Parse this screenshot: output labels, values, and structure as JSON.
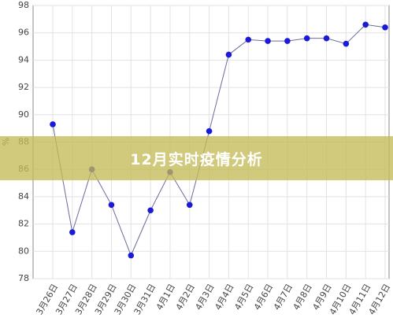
{
  "banner": "12月实时疫情分析",
  "chart_data": {
    "type": "line",
    "ylabel": "%",
    "categories": [
      "3月26日",
      "3月27日",
      "3月28日",
      "3月29日",
      "3月30日",
      "3月31日",
      "4月1日",
      "4月2日",
      "4月3日",
      "4月4日",
      "4月5日",
      "4月6日",
      "4月7日",
      "4月8日",
      "4月9日",
      "4月10日",
      "4月11日",
      "4月12日"
    ],
    "series": [
      {
        "name": "%",
        "color": "#1a1ad8",
        "line_color": "#6b6b9c",
        "values": [
          89.3,
          81.4,
          86.0,
          83.4,
          79.7,
          83.0,
          85.8,
          83.4,
          88.8,
          94.4,
          95.5,
          95.4,
          95.4,
          95.6,
          95.6,
          95.2,
          96.6,
          96.4
        ]
      }
    ],
    "ylim": [
      78,
      98
    ],
    "yticks": [
      78,
      80,
      82,
      84,
      86,
      88,
      90,
      92,
      94,
      96,
      98
    ],
    "grid": true
  }
}
